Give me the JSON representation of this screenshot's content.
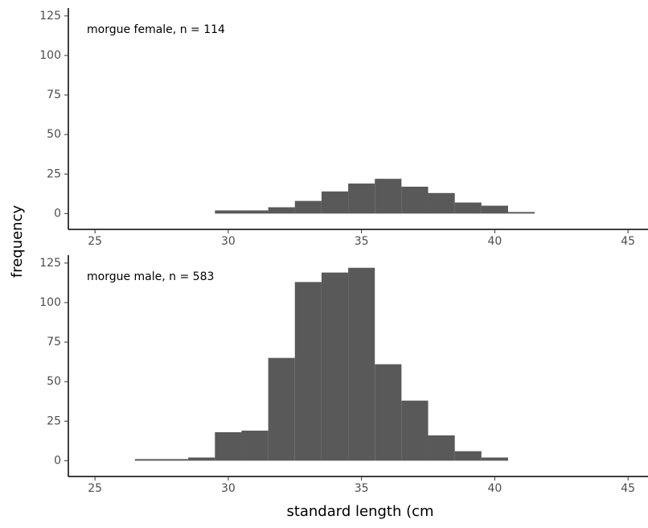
{
  "chart_data": [
    {
      "type": "histogram",
      "annotation": "morgue  female, n = 114",
      "bins": [
        29.5,
        30.5,
        31.5,
        32.5,
        33.5,
        34.5,
        35.5,
        36.5,
        37.5,
        38.5,
        39.5,
        40.5,
        41.5
      ],
      "values": [
        2,
        2,
        4,
        8,
        14,
        19,
        22,
        17,
        13,
        7,
        5,
        1
      ],
      "color": "#595959",
      "xlim": [
        24,
        45.75
      ],
      "xticks": [
        25,
        30,
        35,
        40,
        45
      ],
      "ylim": [
        -10,
        130
      ],
      "yticks": [
        0,
        25,
        50,
        75,
        100,
        125
      ]
    },
    {
      "type": "histogram",
      "annotation": "morgue male, n = 583",
      "bins": [
        26.5,
        27.5,
        28.5,
        29.5,
        30.5,
        31.5,
        32.5,
        33.5,
        34.5,
        35.5,
        36.5,
        37.5,
        38.5,
        39.5,
        40.5
      ],
      "values": [
        1,
        1,
        2,
        18,
        19,
        65,
        113,
        119,
        122,
        61,
        38,
        16,
        6,
        2
      ],
      "color": "#595959",
      "xlim": [
        24,
        45.75
      ],
      "xticks": [
        25,
        30,
        35,
        40,
        45
      ],
      "ylim": [
        -10,
        130
      ],
      "yticks": [
        0,
        25,
        50,
        75,
        100,
        125
      ]
    }
  ],
  "ylabel": "frequency",
  "xlabel": "standard length (cm"
}
